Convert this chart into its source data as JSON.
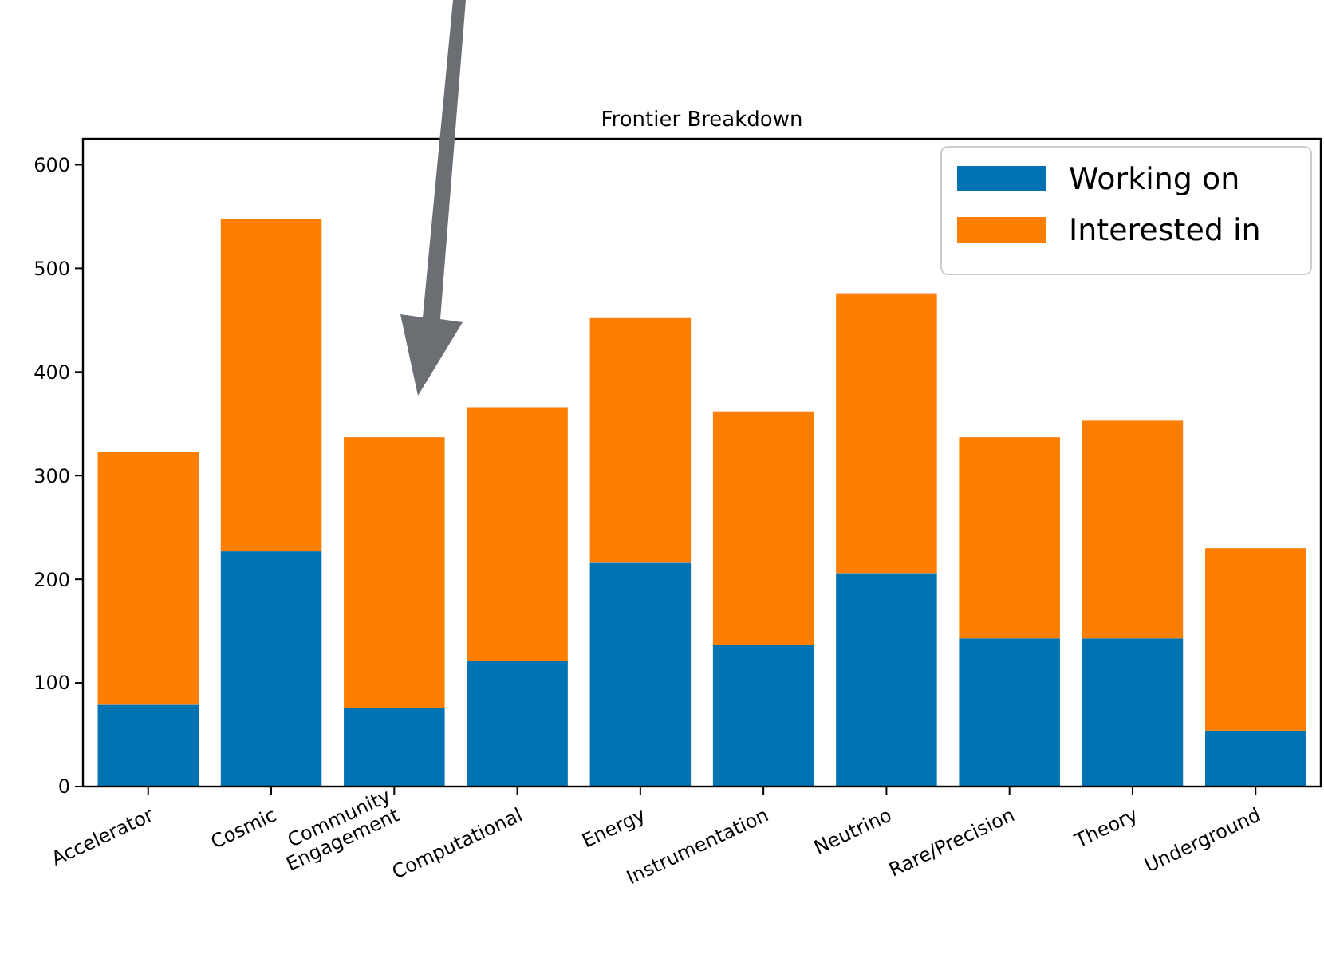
{
  "chart_data": {
    "type": "bar",
    "title": "Frontier Breakdown",
    "stacked": true,
    "categories": [
      "Accelerator",
      "Cosmic",
      "Community\nEngagement",
      "Computational",
      "Energy",
      "Instrumentation",
      "Neutrino",
      "Rare/Precision",
      "Theory",
      "Underground"
    ],
    "series": [
      {
        "name": "Working on",
        "color": "#0173b2",
        "values": [
          79,
          227,
          76,
          121,
          216,
          137,
          206,
          143,
          143,
          54
        ]
      },
      {
        "name": "Interested in",
        "color": "#fe7e00",
        "values": [
          244,
          321,
          261,
          245,
          236,
          225,
          270,
          194,
          210,
          176
        ]
      }
    ],
    "ylim": [
      0,
      625
    ],
    "yticks": [
      0,
      100,
      200,
      300,
      400,
      500,
      600
    ],
    "legend": "top right"
  }
}
